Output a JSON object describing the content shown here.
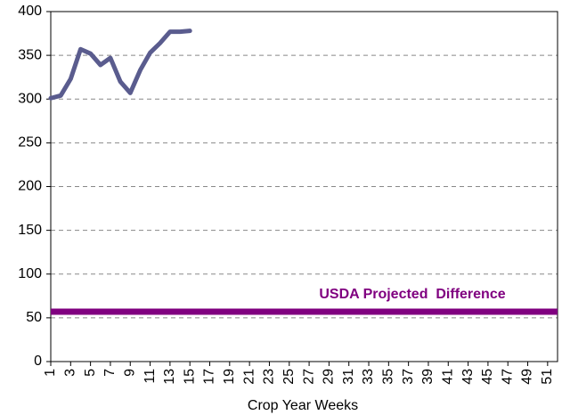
{
  "chart_data": {
    "type": "line",
    "x": [
      1,
      2,
      3,
      4,
      5,
      6,
      7,
      8,
      9,
      10,
      11,
      12,
      13,
      14,
      15
    ],
    "values": [
      301,
      304,
      323,
      357,
      352,
      339,
      347,
      320,
      307,
      333,
      353,
      364,
      377,
      377,
      378
    ],
    "color": "#5a5c8e",
    "xlim": [
      1,
      52
    ],
    "xticks": [
      1,
      3,
      5,
      7,
      9,
      11,
      13,
      15,
      17,
      19,
      21,
      23,
      25,
      27,
      29,
      31,
      33,
      35,
      37,
      39,
      41,
      43,
      45,
      47,
      49,
      51
    ],
    "ylim": [
      0,
      400
    ],
    "yticks": [
      0,
      50,
      100,
      150,
      200,
      250,
      300,
      350,
      400
    ],
    "grid": true,
    "x_label": "Crop Year Weeks",
    "reference_line": {
      "label": "USDA Projected  Difference",
      "value": 57,
      "color": "#800080"
    }
  }
}
